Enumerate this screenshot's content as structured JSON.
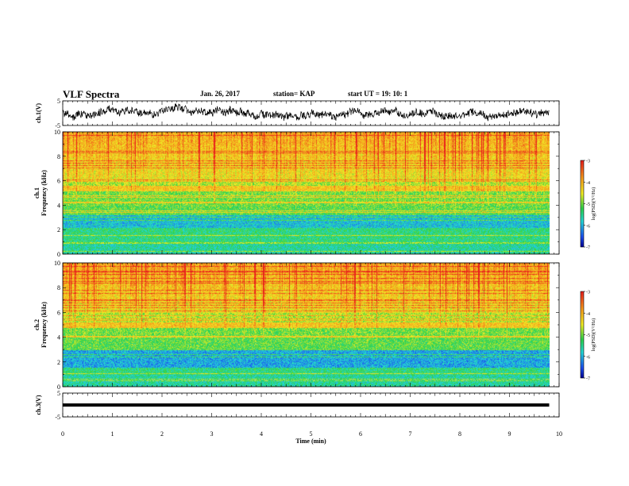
{
  "header": {
    "title": "VLF Spectra",
    "date": "Jan. 26, 2017",
    "station": "station= KAP",
    "start": "start  UT  =   19: 10: 1"
  },
  "colors": {
    "red": "#e8201c",
    "orange": "#f59a1c",
    "yellow": "#f0ec26",
    "green": "#2ed24a",
    "cyan": "#23d7d8",
    "blue": "#1c4ff0",
    "navy": "#000090"
  },
  "colorbar": {
    "label": "log(PSD)(V²/Hz)",
    "ticks": [
      "-3",
      "-4",
      "-5",
      "-6",
      "-7"
    ]
  },
  "chart_data": {
    "type": "heatmap",
    "panels": [
      {
        "id": "ch1-waveform",
        "ylabel": "ch.1(V)",
        "ylim": [
          -5,
          5
        ],
        "yticks": [
          "5",
          "-5"
        ]
      },
      {
        "id": "ch1-spectrogram",
        "ylabel": "ch.1\nFrequency (kHz)",
        "ylim": [
          0,
          10
        ],
        "yticks": [
          "0",
          "2",
          "4",
          "6",
          "8",
          "10"
        ],
        "strong_band_khz": [
          5.2,
          5.6
        ],
        "low_band_khz": [
          2.2,
          3.3
        ]
      },
      {
        "id": "ch2-spectrogram",
        "ylabel": "ch.2\nFrequency (kHz)",
        "ylim": [
          0,
          10
        ],
        "yticks": [
          "0",
          "2",
          "4",
          "6",
          "8",
          "10"
        ],
        "strong_band_khz": [
          4.8,
          5.2
        ],
        "low_band_khz": [
          1.6,
          3.0
        ]
      },
      {
        "id": "ch3-waveform",
        "ylabel": "ch.3(V)",
        "ylim": [
          -5,
          5
        ],
        "yticks": [
          "5",
          "-5"
        ],
        "constant_value": 0
      }
    ],
    "xlabel": "Time (min)",
    "xlim": [
      0,
      10
    ],
    "xticks": [
      "0",
      "1",
      "2",
      "3",
      "4",
      "5",
      "6",
      "7",
      "8",
      "9",
      "10"
    ],
    "data_end_min": 9.8
  }
}
